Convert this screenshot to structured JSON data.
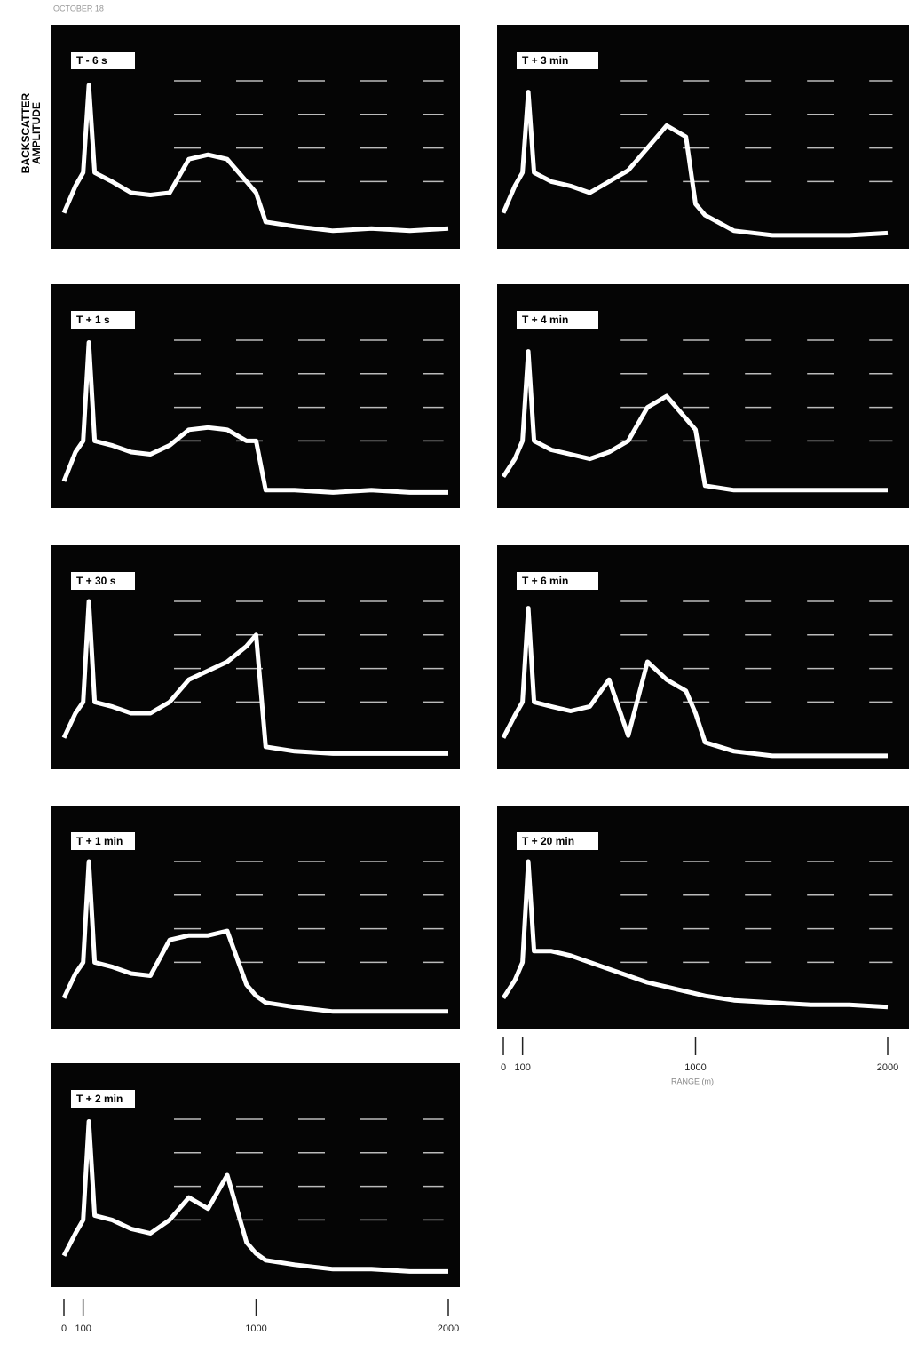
{
  "header": "OCTOBER 18",
  "y_label": [
    "BACKSCATTER",
    "AMPLITUDE"
  ],
  "axes": [
    {
      "xlim": [
        0,
        2000
      ],
      "xticks": [
        0,
        100,
        1000,
        2000
      ]
    },
    {
      "xlim": [
        0,
        2000
      ],
      "xticks": [
        0,
        100,
        1000,
        2000
      ],
      "xlabel": "RANGE (m)"
    }
  ],
  "chart_data": [
    {
      "type": "line",
      "title": "T - 6 s",
      "ylim": [
        0,
        100
      ],
      "color": "#ffffff",
      "x": [
        0,
        60,
        100,
        130,
        160,
        250,
        350,
        450,
        550,
        650,
        750,
        850,
        950,
        1000,
        1050,
        1200,
        1400,
        1600,
        1800,
        2000
      ],
      "values": [
        16,
        28,
        34,
        73,
        34,
        30,
        25,
        24,
        25,
        40,
        42,
        40,
        30,
        25,
        12,
        10,
        8,
        9,
        8,
        9
      ]
    },
    {
      "type": "line",
      "title": "T + 1 s",
      "ylim": [
        0,
        100
      ],
      "color": "#ffffff",
      "x": [
        0,
        60,
        100,
        130,
        160,
        250,
        350,
        450,
        550,
        650,
        750,
        850,
        950,
        1000,
        1050,
        1200,
        1400,
        1600,
        1800,
        2000
      ],
      "values": [
        12,
        25,
        30,
        74,
        30,
        28,
        25,
        24,
        28,
        35,
        36,
        35,
        30,
        30,
        8,
        8,
        7,
        8,
        7,
        7
      ]
    },
    {
      "type": "line",
      "title": "T + 30 s",
      "ylim": [
        0,
        100
      ],
      "color": "#ffffff",
      "x": [
        0,
        60,
        100,
        130,
        160,
        250,
        350,
        450,
        550,
        650,
        750,
        850,
        950,
        1000,
        1050,
        1200,
        1400,
        1600,
        1800,
        2000
      ],
      "values": [
        14,
        25,
        30,
        75,
        30,
        28,
        25,
        25,
        30,
        40,
        44,
        48,
        55,
        60,
        10,
        8,
        7,
        7,
        7,
        7
      ]
    },
    {
      "type": "line",
      "title": "T + 1 min",
      "ylim": [
        0,
        100
      ],
      "color": "#ffffff",
      "x": [
        0,
        60,
        100,
        130,
        160,
        250,
        350,
        450,
        550,
        650,
        750,
        850,
        950,
        1000,
        1050,
        1200,
        1400,
        1600,
        1800,
        2000
      ],
      "values": [
        14,
        25,
        30,
        75,
        30,
        28,
        25,
        24,
        40,
        42,
        42,
        44,
        20,
        15,
        12,
        10,
        8,
        8,
        8,
        8
      ]
    },
    {
      "type": "line",
      "title": "T + 2 min",
      "ylim": [
        0,
        100
      ],
      "color": "#ffffff",
      "x": [
        0,
        60,
        100,
        130,
        160,
        250,
        350,
        450,
        550,
        650,
        750,
        850,
        950,
        1000,
        1050,
        1200,
        1400,
        1600,
        1800,
        2000
      ],
      "values": [
        14,
        24,
        30,
        74,
        32,
        30,
        26,
        24,
        30,
        40,
        35,
        50,
        20,
        15,
        12,
        10,
        8,
        8,
        7,
        7
      ]
    },
    {
      "type": "line",
      "title": "T + 3 min",
      "ylim": [
        0,
        100
      ],
      "color": "#ffffff",
      "x": [
        0,
        60,
        100,
        130,
        160,
        250,
        350,
        450,
        550,
        650,
        750,
        850,
        950,
        1000,
        1050,
        1200,
        1400,
        1600,
        1800,
        2000
      ],
      "values": [
        16,
        28,
        34,
        70,
        34,
        30,
        28,
        25,
        30,
        35,
        45,
        55,
        50,
        20,
        15,
        8,
        6,
        6,
        6,
        7
      ]
    },
    {
      "type": "line",
      "title": "T + 4 min",
      "ylim": [
        0,
        100
      ],
      "color": "#ffffff",
      "x": [
        0,
        60,
        100,
        130,
        160,
        250,
        350,
        450,
        550,
        650,
        750,
        850,
        950,
        1000,
        1050,
        1200,
        1400,
        1600,
        1800,
        2000
      ],
      "values": [
        14,
        22,
        30,
        70,
        30,
        26,
        24,
        22,
        25,
        30,
        45,
        50,
        40,
        35,
        10,
        8,
        8,
        8,
        8,
        8
      ]
    },
    {
      "type": "line",
      "title": "T + 6 min",
      "ylim": [
        0,
        100
      ],
      "color": "#ffffff",
      "x": [
        0,
        60,
        100,
        130,
        160,
        250,
        350,
        450,
        550,
        650,
        750,
        850,
        950,
        1000,
        1050,
        1200,
        1400,
        1600,
        1800,
        2000
      ],
      "values": [
        14,
        24,
        30,
        72,
        30,
        28,
        26,
        28,
        40,
        15,
        48,
        40,
        35,
        25,
        12,
        8,
        6,
        6,
        6,
        6
      ]
    },
    {
      "type": "line",
      "title": "T + 20 min",
      "ylim": [
        0,
        100
      ],
      "color": "#ffffff",
      "x": [
        0,
        60,
        100,
        130,
        160,
        250,
        350,
        450,
        550,
        650,
        750,
        850,
        950,
        1000,
        1050,
        1200,
        1400,
        1600,
        1800,
        2000
      ],
      "values": [
        14,
        22,
        30,
        75,
        35,
        35,
        33,
        30,
        27,
        24,
        21,
        19,
        17,
        16,
        15,
        13,
        12,
        11,
        11,
        10
      ]
    }
  ]
}
